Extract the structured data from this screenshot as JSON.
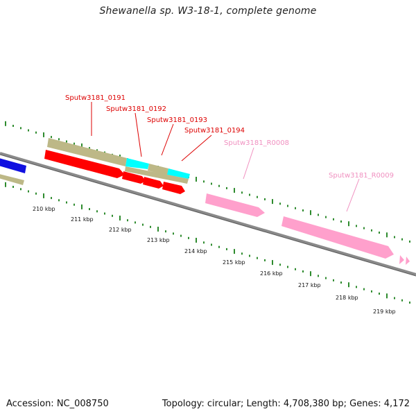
{
  "title": "Shewanella sp. W3-18-1, complete genome",
  "footer": {
    "accession": "Accession: NC_008750",
    "topology": "Topology: circular; Length: 4,708,380 bp; Genes: 4,172"
  },
  "colors": {
    "backbone": "#8a8a8a",
    "tick": "#2e8b2e",
    "gene_red": "#ff0000",
    "gene_khaki": "#bdb887",
    "gene_cyan": "#00ffff",
    "gene_blue": "#1010e0",
    "rna_pink": "#ffa0cc",
    "label_red": "#dd0000",
    "label_pink": "#f090c0"
  },
  "kbp_labels": [
    "210 kbp",
    "211 kbp",
    "212 kbp",
    "213 kbp",
    "214 kbp",
    "215 kbp",
    "216 kbp",
    "217 kbp",
    "218 kbp",
    "219 kbp"
  ],
  "gene_labels": [
    "Sputw3181_0191",
    "Sputw3181_0192",
    "Sputw3181_0193",
    "Sputw3181_0194",
    "Sputw3181_R0008",
    "Sputw3181_R0009"
  ]
}
